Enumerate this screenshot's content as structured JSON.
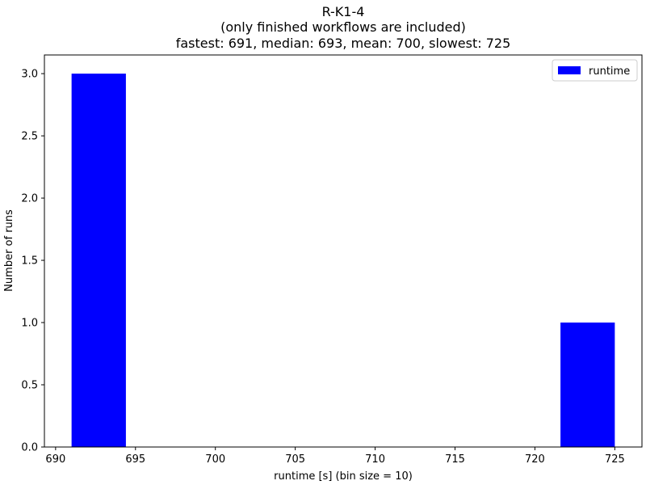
{
  "chart_data": {
    "type": "bar",
    "title_lines": [
      "R-K1-4",
      "(only finished workflows are included)",
      "fastest: 691, median: 693, mean: 700, slowest: 725"
    ],
    "xlabel": "runtime [s] (bin size = 10)",
    "ylabel": "Number of runs",
    "xlim": [
      689.3,
      726.7
    ],
    "ylim": [
      0,
      3.15
    ],
    "xticks": [
      690,
      695,
      700,
      705,
      710,
      715,
      720,
      725
    ],
    "yticks": [
      0.0,
      0.5,
      1.0,
      1.5,
      2.0,
      2.5,
      3.0
    ],
    "xtick_labels": [
      "690",
      "695",
      "700",
      "705",
      "710",
      "715",
      "720",
      "725"
    ],
    "ytick_labels": [
      "0.0",
      "0.5",
      "1.0",
      "1.5",
      "2.0",
      "2.5",
      "3.0"
    ],
    "grid": false,
    "legend_position": "top-right",
    "series": [
      {
        "name": "runtime",
        "color": "#0000ff",
        "bins": [
          {
            "x0": 691,
            "x1": 694.4,
            "count": 3
          },
          {
            "x0": 694.4,
            "x1": 697.8,
            "count": 0
          },
          {
            "x0": 697.8,
            "x1": 701.2,
            "count": 0
          },
          {
            "x0": 701.2,
            "x1": 704.6,
            "count": 0
          },
          {
            "x0": 704.6,
            "x1": 708.0,
            "count": 0
          },
          {
            "x0": 708.0,
            "x1": 711.4,
            "count": 0
          },
          {
            "x0": 711.4,
            "x1": 714.8,
            "count": 0
          },
          {
            "x0": 714.8,
            "x1": 718.2,
            "count": 0
          },
          {
            "x0": 718.2,
            "x1": 721.6,
            "count": 0
          },
          {
            "x0": 721.6,
            "x1": 725,
            "count": 1
          }
        ]
      }
    ]
  }
}
